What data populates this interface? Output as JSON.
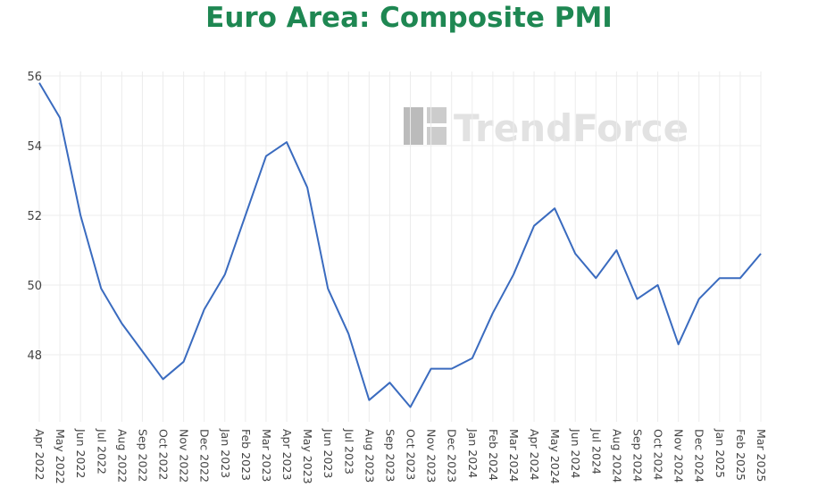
{
  "chart_data": {
    "type": "line",
    "title": "Euro Area: Composite PMI",
    "watermark": "TrendForce",
    "xlabel": "",
    "ylabel": "",
    "ylim": [
      46,
      56
    ],
    "yticks": [
      48,
      50,
      52,
      54,
      56
    ],
    "grid": true,
    "categories": [
      "Apr 2022",
      "May 2022",
      "Jun 2022",
      "Jul 2022",
      "Aug 2022",
      "Sep 2022",
      "Oct 2022",
      "Nov 2022",
      "Dec 2022",
      "Jan 2023",
      "Feb 2023",
      "Mar 2023",
      "Apr 2023",
      "May 2023",
      "Jun 2023",
      "Jul 2023",
      "Aug 2023",
      "Sep 2023",
      "Oct 2023",
      "Nov 2023",
      "Dec 2023",
      "Jan 2024",
      "Feb 2024",
      "Mar 2024",
      "Apr 2024",
      "May 2024",
      "Jun 2024",
      "Jul 2024",
      "Aug 2024",
      "Sep 2024",
      "Oct 2024",
      "Nov 2024",
      "Dec 2024",
      "Jan 2025",
      "Feb 2025",
      "Mar 2025"
    ],
    "series": [
      {
        "name": "Composite PMI",
        "color": "#3a6bbf",
        "values": [
          55.8,
          54.8,
          52.0,
          49.9,
          48.9,
          48.1,
          47.3,
          47.8,
          49.3,
          50.3,
          52.0,
          53.7,
          54.1,
          52.8,
          49.9,
          48.6,
          46.7,
          47.2,
          46.5,
          47.6,
          47.6,
          47.9,
          49.2,
          50.3,
          51.7,
          52.2,
          50.9,
          50.2,
          51.0,
          49.6,
          50.0,
          48.3,
          49.6,
          50.2,
          50.2,
          50.9
        ]
      }
    ]
  }
}
